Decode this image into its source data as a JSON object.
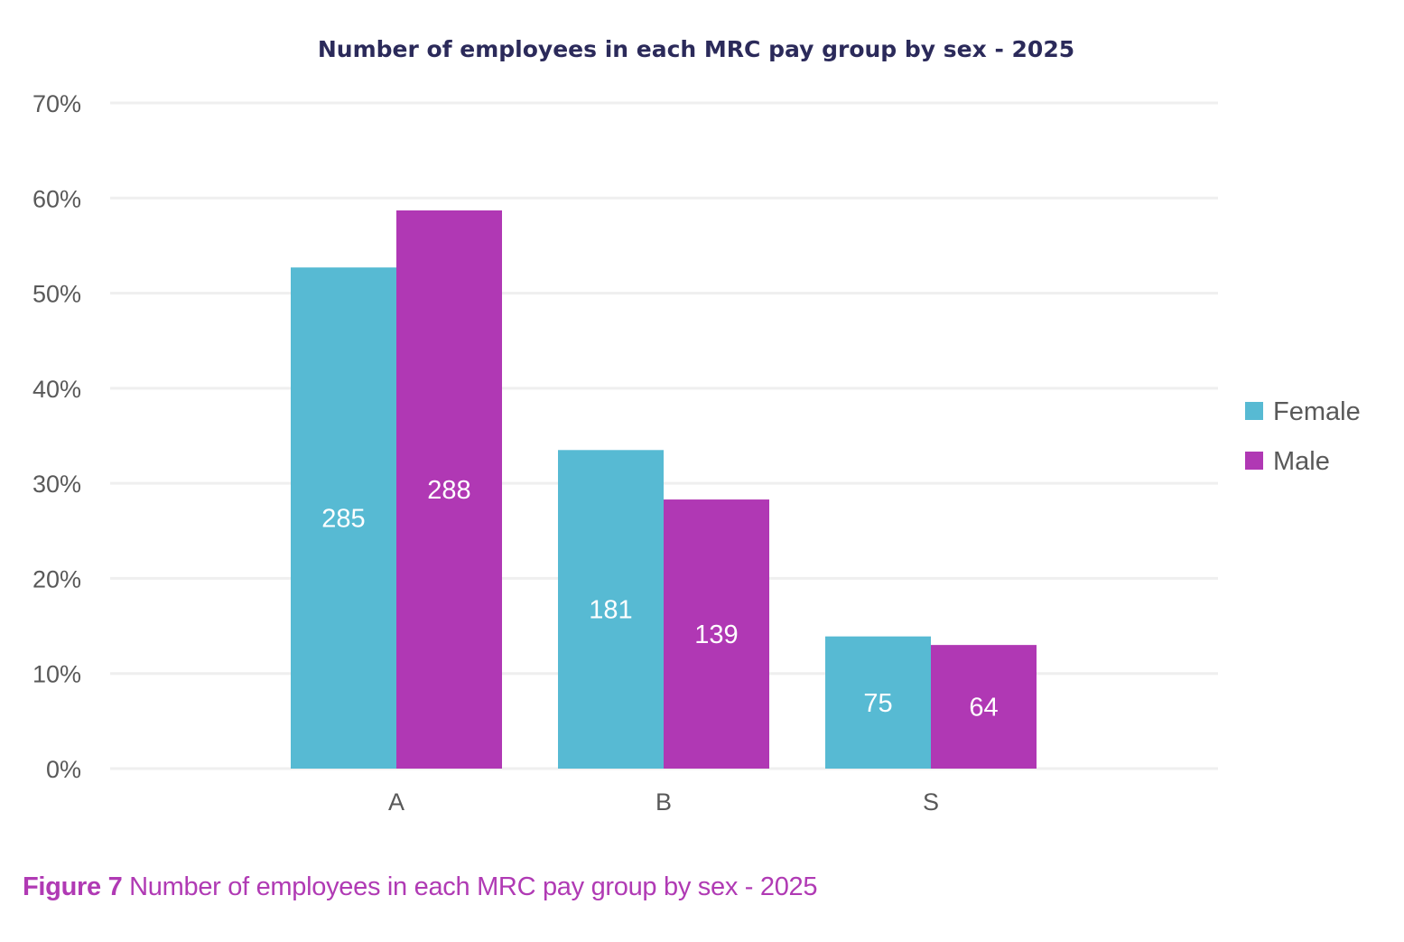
{
  "chart_data": {
    "type": "bar",
    "title": "Number of employees in each MRC pay group by sex - 2025",
    "xlabel": "",
    "ylabel": "",
    "categories": [
      "A",
      "B",
      "S"
    ],
    "ylim": [
      0,
      70
    ],
    "yticks": [
      0,
      10,
      20,
      30,
      40,
      50,
      60,
      70
    ],
    "ytick_labels": [
      "0%",
      "10%",
      "20%",
      "30%",
      "40%",
      "50%",
      "60%",
      "70%"
    ],
    "grid": true,
    "legend_position": "right",
    "series": [
      {
        "name": "Female",
        "color": "#57bad3",
        "values": [
          52.7,
          33.5,
          13.9
        ],
        "data_labels": [
          "285",
          "181",
          "75"
        ]
      },
      {
        "name": "Male",
        "color": "#b038b4",
        "values": [
          58.7,
          28.3,
          13.0
        ],
        "data_labels": [
          "288",
          "139",
          "64"
        ]
      }
    ]
  },
  "caption": {
    "figure_label": "Figure 7",
    "text": " Number of employees in each MRC pay group by sex - 2025"
  }
}
